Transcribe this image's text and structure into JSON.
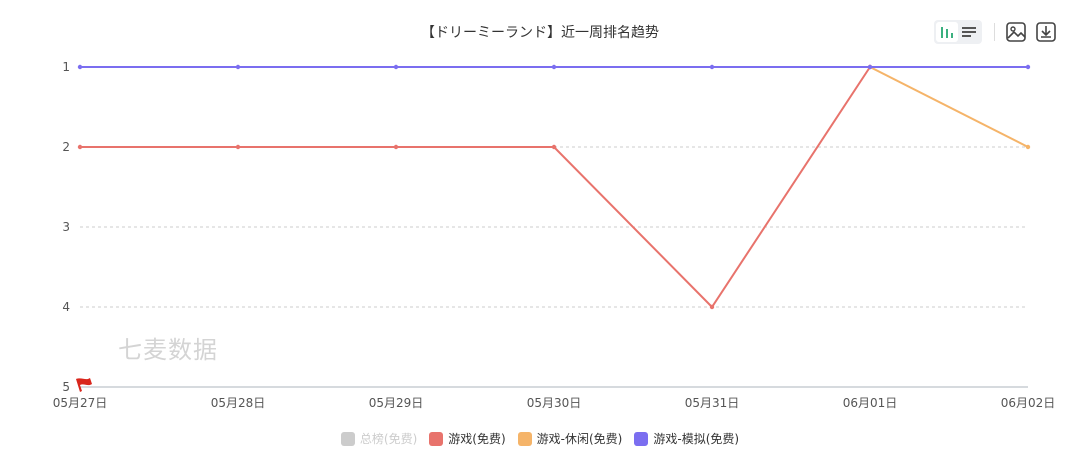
{
  "title": "【ドリーミーランド】近一周排名趋势",
  "toolbar": {
    "icons": [
      "bar-chart-icon",
      "list-icon",
      "image-icon",
      "download-icon"
    ]
  },
  "watermark": "七麦数据",
  "legend": [
    {
      "label": "总榜(免费)",
      "color": "#cccccc",
      "active": false
    },
    {
      "label": "游戏(免费)",
      "color": "#e8736c",
      "active": true
    },
    {
      "label": "游戏-休闲(免费)",
      "color": "#f5b469",
      "active": true
    },
    {
      "label": "游戏-模拟(免费)",
      "color": "#7b6ef0",
      "active": true
    }
  ],
  "chart_data": {
    "type": "line",
    "title": "【ドリーミーランド】近一周排名趋势",
    "categories": [
      "05月27日",
      "05月28日",
      "05月29日",
      "05月30日",
      "05月31日",
      "06月01日",
      "06月02日"
    ],
    "yticks": [
      1,
      2,
      3,
      4,
      5
    ],
    "ylim": [
      1,
      5
    ],
    "y_inverted": true,
    "series": [
      {
        "name": "总榜(免费)",
        "color": "#cccccc",
        "values": [
          null,
          null,
          null,
          null,
          null,
          null,
          null
        ]
      },
      {
        "name": "游戏(免费)",
        "color": "#e8736c",
        "values": [
          2,
          2,
          2,
          2,
          4,
          1,
          null
        ]
      },
      {
        "name": "游戏-休闲(免费)",
        "color": "#f5b469",
        "values": [
          null,
          null,
          null,
          null,
          null,
          1,
          2
        ]
      },
      {
        "name": "游戏-模拟(免费)",
        "color": "#7b6ef0",
        "values": [
          1,
          1,
          1,
          1,
          1,
          1,
          1
        ]
      }
    ],
    "grid": true,
    "legend_position": "bottom"
  }
}
